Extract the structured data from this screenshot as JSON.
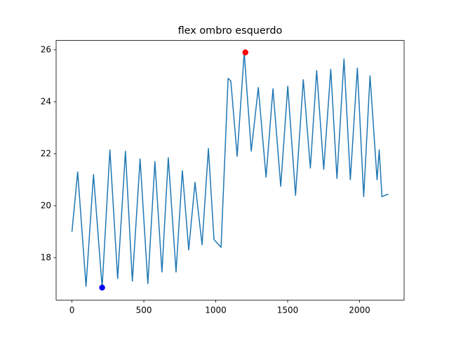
{
  "chart_data": {
    "type": "line",
    "title": "flex ombro esquerdo",
    "x": [
      0,
      40,
      98,
      150,
      210,
      264,
      318,
      372,
      420,
      474,
      528,
      577,
      626,
      670,
      724,
      768,
      812,
      856,
      870,
      905,
      949,
      988,
      1037,
      1086,
      1105,
      1149,
      1198,
      1247,
      1296,
      1350,
      1398,
      1452,
      1501,
      1555,
      1609,
      1658,
      1702,
      1751,
      1800,
      1843,
      1892,
      1936,
      1985,
      2029,
      2073,
      2122,
      2137,
      2156,
      2200
    ],
    "series": [
      {
        "color": "#1f77b4",
        "values": [
          19.0,
          21.3,
          16.9,
          21.2,
          16.85,
          22.15,
          17.2,
          22.1,
          17.1,
          21.8,
          17.0,
          21.7,
          17.45,
          21.85,
          17.45,
          21.35,
          18.3,
          20.9,
          20.2,
          18.5,
          22.2,
          18.7,
          18.4,
          24.9,
          24.8,
          21.9,
          25.9,
          22.1,
          24.55,
          21.1,
          24.5,
          20.75,
          24.6,
          20.4,
          24.85,
          21.45,
          25.2,
          21.4,
          25.25,
          21.05,
          25.65,
          21.0,
          25.3,
          20.35,
          25.0,
          21.0,
          22.15,
          20.35,
          20.45
        ]
      }
    ],
    "markers": [
      {
        "x": 210,
        "y": 16.85,
        "color": "#0000ff"
      },
      {
        "x": 1206,
        "y": 25.9,
        "color": "#ff0000"
      }
    ],
    "xlim": [
      -110,
      2310
    ],
    "ylim": [
      16.37,
      26.36
    ],
    "xticks": [
      0,
      500,
      1000,
      1500,
      2000
    ],
    "yticks": [
      18,
      20,
      22,
      24,
      26
    ],
    "grid": false
  }
}
